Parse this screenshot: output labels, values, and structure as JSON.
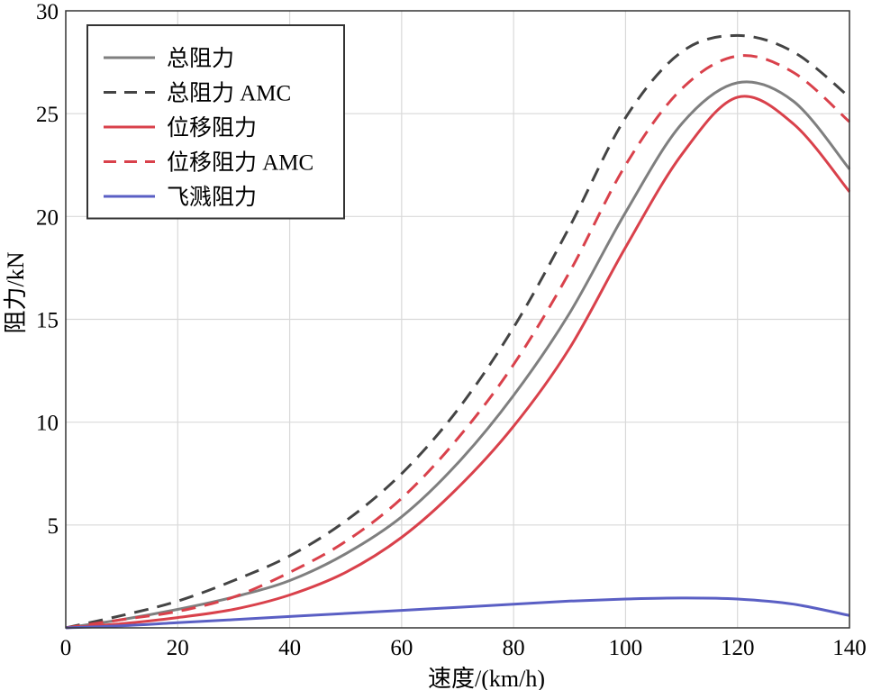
{
  "chart_data": {
    "type": "line",
    "xlabel": "速度/(km/h)",
    "ylabel": "阻力/kN",
    "xlim": [
      0,
      140
    ],
    "ylim": [
      0,
      30
    ],
    "xticks": [
      0,
      20,
      40,
      60,
      80,
      100,
      120,
      140
    ],
    "yticks": [
      5,
      10,
      15,
      20,
      25,
      30
    ],
    "grid": true,
    "legend_position": "top-left",
    "x": [
      0,
      10,
      20,
      30,
      40,
      50,
      60,
      70,
      80,
      90,
      100,
      110,
      120,
      130,
      140
    ],
    "series": [
      {
        "name": "总阻力",
        "color": "#7f7f7f",
        "style": "solid",
        "values": [
          0,
          0.4,
          0.9,
          1.5,
          2.3,
          3.6,
          5.4,
          8.0,
          11.3,
          15.3,
          20.2,
          24.5,
          26.5,
          25.6,
          22.3
        ]
      },
      {
        "name": "总阻力 AMC",
        "color": "#444444",
        "style": "dashed",
        "values": [
          0,
          0.6,
          1.3,
          2.3,
          3.5,
          5.2,
          7.5,
          10.6,
          14.6,
          19.5,
          24.8,
          28.0,
          28.8,
          28.0,
          25.8
        ]
      },
      {
        "name": "位移阻力",
        "color": "#d9414b",
        "style": "solid",
        "values": [
          0,
          0.2,
          0.5,
          0.9,
          1.6,
          2.7,
          4.4,
          6.8,
          9.8,
          13.6,
          18.5,
          23.0,
          25.8,
          24.5,
          21.2
        ]
      },
      {
        "name": "位移阻力 AMC",
        "color": "#d9414b",
        "style": "dashed",
        "values": [
          0,
          0.4,
          0.8,
          1.5,
          2.7,
          4.2,
          6.3,
          9.2,
          12.8,
          17.3,
          22.5,
          26.2,
          27.8,
          27.0,
          24.6
        ]
      },
      {
        "name": "飞溅阻力",
        "color": "#5a5fc4",
        "style": "solid",
        "values": [
          0,
          0.1,
          0.25,
          0.4,
          0.55,
          0.7,
          0.85,
          1.0,
          1.15,
          1.3,
          1.4,
          1.45,
          1.4,
          1.15,
          0.6
        ]
      }
    ]
  }
}
